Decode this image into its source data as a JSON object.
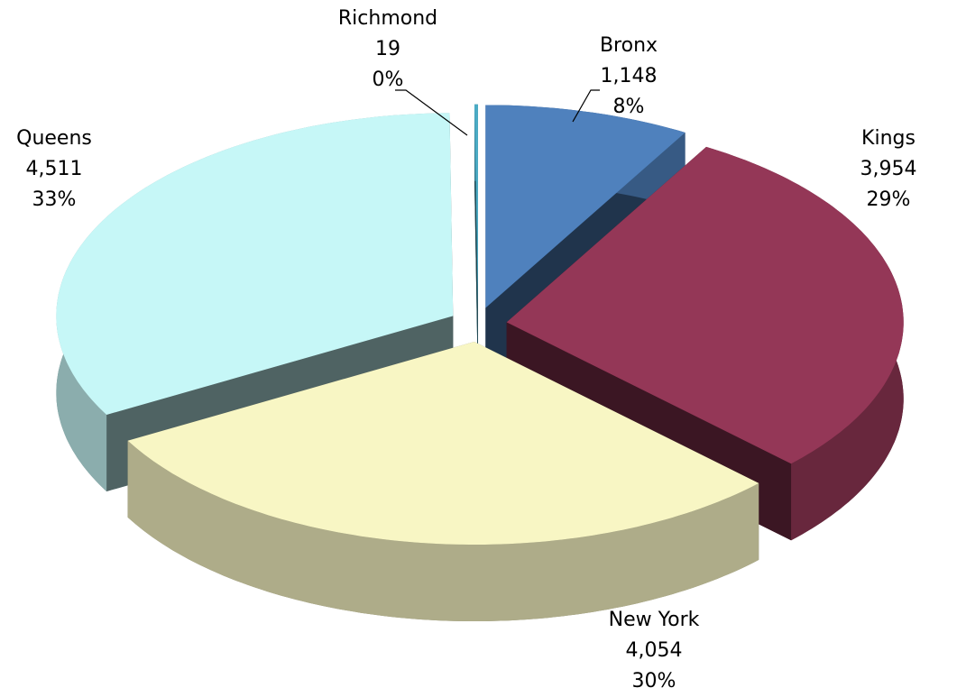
{
  "chart_data": {
    "type": "pie3d",
    "categories": [
      "Bronx",
      "Kings",
      "New York",
      "Queens",
      "Richmond"
    ],
    "values": [
      1148,
      3954,
      4054,
      4511,
      19
    ],
    "value_labels": [
      "1,148",
      "3,954",
      "4,054",
      "4,511",
      "19"
    ],
    "percent_labels": [
      "8%",
      "29%",
      "30%",
      "33%",
      "0%"
    ],
    "colors": [
      "#4f81bd",
      "#943757",
      "#f8f6c4",
      "#c6f7f7",
      "#4bacc6"
    ],
    "exploded": true
  }
}
